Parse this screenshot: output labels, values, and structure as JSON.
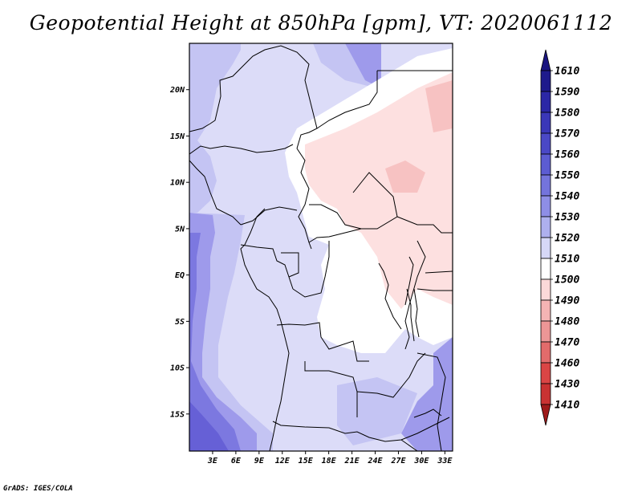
{
  "title": "Geopotential Height at 850hPa [gpm], VT: 2020061112",
  "credit": "GrADS: IGES/COLA",
  "map": {
    "lon_range": [
      0,
      34
    ],
    "lat_range": [
      -19,
      25
    ],
    "lat_ticks": [
      {
        "value": 20,
        "label": "20N"
      },
      {
        "value": 15,
        "label": "15N"
      },
      {
        "value": 10,
        "label": "10N"
      },
      {
        "value": 5,
        "label": "5N"
      },
      {
        "value": 0,
        "label": "EQ"
      },
      {
        "value": -5,
        "label": "5S"
      },
      {
        "value": -10,
        "label": "10S"
      },
      {
        "value": -15,
        "label": "15S"
      }
    ],
    "lon_ticks": [
      {
        "value": 3,
        "label": "3E"
      },
      {
        "value": 6,
        "label": "6E"
      },
      {
        "value": 9,
        "label": "9E"
      },
      {
        "value": 12,
        "label": "12E"
      },
      {
        "value": 15,
        "label": "15E"
      },
      {
        "value": 18,
        "label": "18E"
      },
      {
        "value": 21,
        "label": "21E"
      },
      {
        "value": 24,
        "label": "24E"
      },
      {
        "value": 27,
        "label": "27E"
      },
      {
        "value": 30,
        "label": "30E"
      },
      {
        "value": 33,
        "label": "33E"
      }
    ]
  },
  "colorbar": {
    "units": "gpm",
    "levels": [
      {
        "label": "1610",
        "color": "#1e1a8c"
      },
      {
        "label": "1590",
        "color": "#2b27a6"
      },
      {
        "label": "1580",
        "color": "#3a37b8"
      },
      {
        "label": "1570",
        "color": "#4a48c6"
      },
      {
        "label": "1560",
        "color": "#5c5cd2"
      },
      {
        "label": "1550",
        "color": "#7474dc"
      },
      {
        "label": "1540",
        "color": "#8e8ee6"
      },
      {
        "label": "1530",
        "color": "#aeb0ee"
      },
      {
        "label": "1520",
        "color": "#d6d8f7"
      },
      {
        "label": "1510",
        "color": "#ffffff"
      },
      {
        "label": "1500",
        "color": "#fbd9d9"
      },
      {
        "label": "1490",
        "color": "#f4b4b4"
      },
      {
        "label": "1480",
        "color": "#ec9696"
      },
      {
        "label": "1470",
        "color": "#e26b6b"
      },
      {
        "label": "1460",
        "color": "#da4545"
      },
      {
        "label": "1430",
        "color": "#c93232"
      },
      {
        "label": "1410",
        "color": "#ad2121"
      }
    ],
    "top_arrow_color": "#1a1580",
    "bottom_arrow_color": "#9e1a1a"
  },
  "field_colors": {
    "z1550": "#7c78e0",
    "z1540": "#9e9aeb",
    "z1530": "#c4c4f3",
    "z1520": "#dcdcf8",
    "z1510": "#ffffff",
    "z1500": "#fde0e0",
    "z1490": "#f7c2c2",
    "z1560": "#6660d6"
  }
}
